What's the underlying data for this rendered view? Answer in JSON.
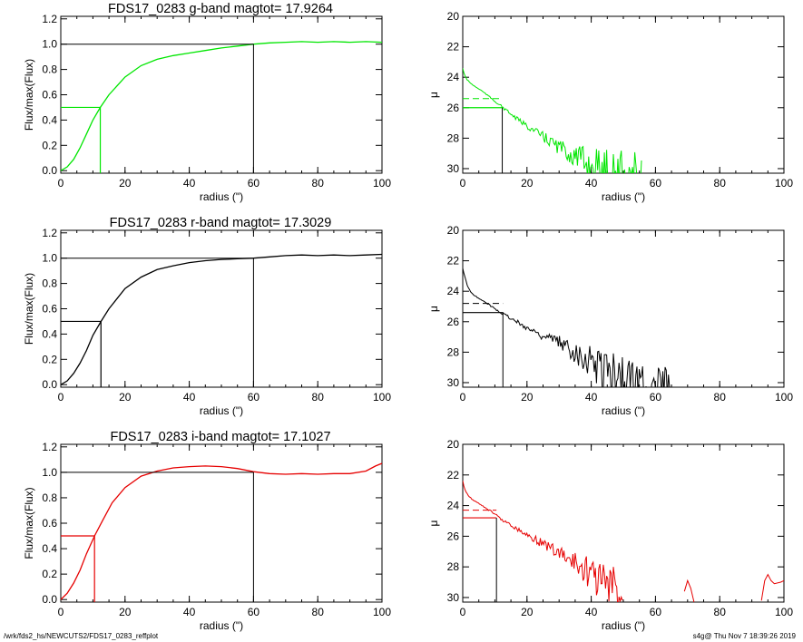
{
  "footer": {
    "left": "/wrk/fds2_hs/NEWCUTS2/FDS17_0283_reffplot",
    "right": "s4g@  Thu Nov  7 18:39:26 2019"
  },
  "colors": {
    "g": "#00e600",
    "r": "#000000",
    "i": "#e60000"
  },
  "chart_data": [
    {
      "panel": "g-growth",
      "type": "line",
      "color": "#00e600",
      "title": "FDS17_0283 g-band  magtot=       17.9264",
      "xlabel": "radius (\")",
      "ylabel": "Flux/max(Flux)",
      "xlim": [
        0,
        100
      ],
      "ylim": [
        -0.02,
        1.22
      ],
      "xticks": [
        "0",
        "20",
        "40",
        "60",
        "80",
        "100"
      ],
      "yticks": [
        "0.0",
        "0.2",
        "0.4",
        "0.6",
        "0.8",
        "1.0",
        "1.2"
      ],
      "curve": [
        [
          0,
          0
        ],
        [
          2,
          0.03
        ],
        [
          4,
          0.09
        ],
        [
          6,
          0.18
        ],
        [
          8,
          0.29
        ],
        [
          10,
          0.4
        ],
        [
          12.3,
          0.5
        ],
        [
          15,
          0.6
        ],
        [
          20,
          0.74
        ],
        [
          25,
          0.83
        ],
        [
          30,
          0.88
        ],
        [
          35,
          0.91
        ],
        [
          40,
          0.93
        ],
        [
          45,
          0.95
        ],
        [
          50,
          0.97
        ],
        [
          55,
          0.985
        ],
        [
          60,
          1.0
        ],
        [
          65,
          1.01
        ],
        [
          70,
          1.015
        ],
        [
          75,
          1.02
        ],
        [
          80,
          1.015
        ],
        [
          85,
          1.02
        ],
        [
          90,
          1.015
        ],
        [
          95,
          1.02
        ],
        [
          100,
          1.015
        ]
      ],
      "r_half": 12.3,
      "r_total": 60
    },
    {
      "panel": "g-profile",
      "type": "line",
      "color": "#00e600",
      "xlabel": "radius (\")",
      "ylabel": "μ",
      "xlim": [
        0,
        100
      ],
      "ylim": [
        30.3,
        20
      ],
      "xticks": [
        "0",
        "20",
        "40",
        "60",
        "80",
        "100"
      ],
      "yticks": [
        "20",
        "22",
        "24",
        "26",
        "28",
        "30"
      ],
      "profile_start": [
        [
          0,
          23.4
        ],
        [
          0.6,
          23.9
        ],
        [
          1.5,
          24.2
        ],
        [
          3,
          24.5
        ],
        [
          6,
          24.9
        ],
        [
          9,
          25.4
        ],
        [
          12,
          25.9
        ],
        [
          16,
          26.6
        ],
        [
          20,
          27.2
        ],
        [
          25,
          27.9
        ],
        [
          30,
          28.6
        ],
        [
          35,
          29.2
        ],
        [
          40,
          29.8
        ],
        [
          45,
          30.1
        ],
        [
          50,
          30.2
        ]
      ],
      "profile_extent": [
        0,
        56
      ],
      "r_eff": 12.3,
      "mu_eff": 26.0,
      "mu_mean": 25.4
    },
    {
      "panel": "r-growth",
      "type": "line",
      "color": "#000000",
      "title": "FDS17_0283 r-band  magtot=       17.3029",
      "xlabel": "radius (\")",
      "ylabel": "Flux/max(Flux)",
      "xlim": [
        0,
        100
      ],
      "ylim": [
        -0.02,
        1.22
      ],
      "xticks": [
        "0",
        "20",
        "40",
        "60",
        "80",
        "100"
      ],
      "yticks": [
        "0.0",
        "0.2",
        "0.4",
        "0.6",
        "0.8",
        "1.0",
        "1.2"
      ],
      "curve": [
        [
          0,
          0
        ],
        [
          2,
          0.03
        ],
        [
          4,
          0.09
        ],
        [
          6,
          0.17
        ],
        [
          8,
          0.27
        ],
        [
          10,
          0.39
        ],
        [
          12.5,
          0.5
        ],
        [
          15,
          0.6
        ],
        [
          20,
          0.76
        ],
        [
          25,
          0.85
        ],
        [
          30,
          0.91
        ],
        [
          35,
          0.94
        ],
        [
          40,
          0.965
        ],
        [
          45,
          0.98
        ],
        [
          50,
          0.99
        ],
        [
          55,
          0.995
        ],
        [
          60,
          1.0
        ],
        [
          65,
          1.01
        ],
        [
          70,
          1.02
        ],
        [
          75,
          1.025
        ],
        [
          80,
          1.02
        ],
        [
          85,
          1.025
        ],
        [
          90,
          1.02
        ],
        [
          95,
          1.025
        ],
        [
          100,
          1.03
        ]
      ],
      "r_half": 12.5,
      "r_total": 60
    },
    {
      "panel": "r-profile",
      "type": "line",
      "color": "#000000",
      "xlabel": "radius (\")",
      "ylabel": "μ",
      "xlim": [
        0,
        100
      ],
      "ylim": [
        30.3,
        20
      ],
      "xticks": [
        "0",
        "20",
        "40",
        "60",
        "80",
        "100"
      ],
      "yticks": [
        "20",
        "22",
        "24",
        "26",
        "28",
        "30"
      ],
      "profile_start": [
        [
          0,
          22.5
        ],
        [
          0.6,
          23.0
        ],
        [
          1.5,
          23.7
        ],
        [
          3,
          24.2
        ],
        [
          6,
          24.6
        ],
        [
          9,
          25.0
        ],
        [
          12,
          25.4
        ],
        [
          16,
          25.9
        ],
        [
          20,
          26.4
        ],
        [
          25,
          26.9
        ],
        [
          30,
          27.4
        ],
        [
          35,
          27.9
        ],
        [
          40,
          28.6
        ],
        [
          45,
          29.2
        ],
        [
          50,
          29.7
        ],
        [
          55,
          30.0
        ]
      ],
      "profile_extent": [
        0,
        66
      ],
      "r_eff": 12.5,
      "mu_eff": 25.4,
      "mu_mean": 24.8
    },
    {
      "panel": "i-growth",
      "type": "line",
      "color": "#e60000",
      "title": "FDS17_0283 i-band  magtot=       17.1027",
      "xlabel": "radius (\")",
      "ylabel": "Flux/max(Flux)",
      "xlim": [
        0,
        100
      ],
      "ylim": [
        -0.02,
        1.22
      ],
      "xticks": [
        "0",
        "20",
        "40",
        "60",
        "80",
        "100"
      ],
      "yticks": [
        "0.0",
        "0.2",
        "0.4",
        "0.6",
        "0.8",
        "1.0",
        "1.2"
      ],
      "curve": [
        [
          0,
          0
        ],
        [
          2,
          0.05
        ],
        [
          4,
          0.13
        ],
        [
          6,
          0.23
        ],
        [
          8,
          0.36
        ],
        [
          10.5,
          0.5
        ],
        [
          13,
          0.62
        ],
        [
          16,
          0.76
        ],
        [
          20,
          0.88
        ],
        [
          25,
          0.97
        ],
        [
          30,
          1.01
        ],
        [
          35,
          1.035
        ],
        [
          40,
          1.045
        ],
        [
          45,
          1.05
        ],
        [
          50,
          1.045
        ],
        [
          55,
          1.03
        ],
        [
          60,
          1.005
        ],
        [
          65,
          0.99
        ],
        [
          70,
          0.985
        ],
        [
          75,
          0.99
        ],
        [
          80,
          0.985
        ],
        [
          85,
          0.99
        ],
        [
          90,
          0.99
        ],
        [
          95,
          1.01
        ],
        [
          98,
          1.05
        ],
        [
          100,
          1.07
        ]
      ],
      "r_half": 10.5,
      "r_total": 60
    },
    {
      "panel": "i-profile",
      "type": "line",
      "color": "#e60000",
      "xlabel": "radius (\")",
      "ylabel": "μ",
      "xlim": [
        0,
        100
      ],
      "ylim": [
        30.3,
        20
      ],
      "xticks": [
        "0",
        "20",
        "40",
        "60",
        "80",
        "100"
      ],
      "yticks": [
        "20",
        "22",
        "24",
        "26",
        "28",
        "30"
      ],
      "profile_start": [
        [
          0,
          22.4
        ],
        [
          0.6,
          22.9
        ],
        [
          1.5,
          23.3
        ],
        [
          3,
          23.6
        ],
        [
          6,
          24.0
        ],
        [
          9,
          24.4
        ],
        [
          12,
          24.9
        ],
        [
          16,
          25.4
        ],
        [
          20,
          25.9
        ],
        [
          25,
          26.5
        ],
        [
          30,
          27.1
        ],
        [
          35,
          27.8
        ],
        [
          40,
          28.5
        ],
        [
          45,
          29.3
        ],
        [
          50,
          29.9
        ]
      ],
      "profile_extent": [
        0,
        50
      ],
      "tail_segments": [
        [
          69,
          29.6,
          70,
          28.9,
          71,
          29.4,
          72,
          30.3
        ],
        [
          93,
          30.2,
          94,
          28.9,
          95,
          28.5,
          96,
          28.9,
          97,
          29.1,
          99,
          29.0,
          100,
          28.9
        ]
      ],
      "r_eff": 10.5,
      "mu_eff": 24.8,
      "mu_mean": 24.3
    }
  ]
}
